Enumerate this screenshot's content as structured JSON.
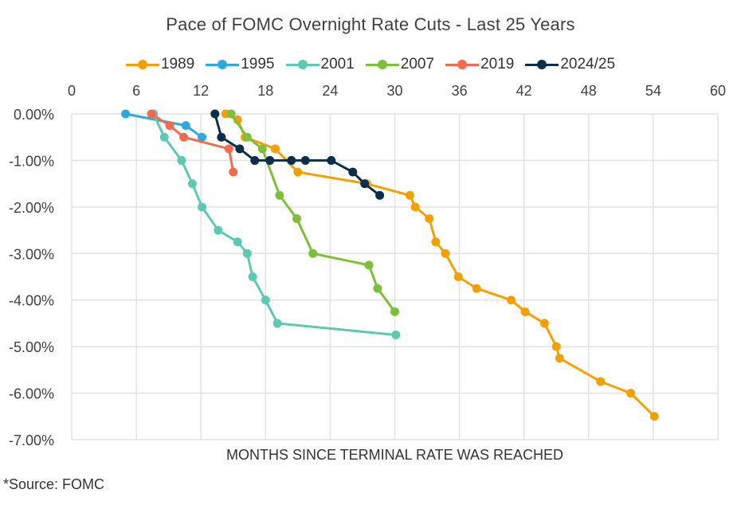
{
  "chart_data": {
    "type": "line",
    "title": "Pace of FOMC Overnight Rate Cuts - Last 25 Years",
    "xlabel": "MONTHS SINCE TERMINAL RATE WAS REACHED",
    "ylabel": "",
    "xlim": [
      0,
      60
    ],
    "ylim": [
      -7,
      0
    ],
    "x_ticks": [
      0,
      6,
      12,
      18,
      24,
      30,
      36,
      42,
      48,
      54,
      60
    ],
    "x_tick_labels": [
      "0",
      "6",
      "12",
      "18",
      "24",
      "30",
      "36",
      "42",
      "48",
      "54",
      "60"
    ],
    "x_axis_position": "top",
    "y_ticks": [
      0,
      -1,
      -2,
      -3,
      -4,
      -5,
      -6,
      -7
    ],
    "y_tick_labels": [
      "0.00%",
      "-1.00%",
      "-2.00%",
      "-3.00%",
      "-4.00%",
      "-5.00%",
      "-6.00%",
      "-7.00%"
    ],
    "grid": true,
    "legend_position": "top",
    "series": [
      {
        "name": "1989",
        "color": "#F2A104",
        "x": [
          14.3,
          15.4,
          16.1,
          18.9,
          21.0,
          27.4,
          31.4,
          31.9,
          33.2,
          33.8,
          34.7,
          35.9,
          37.6,
          40.8,
          42.1,
          43.9,
          45.0,
          45.3,
          49.1,
          51.9,
          54.1
        ],
        "y": [
          0,
          -0.125,
          -0.5,
          -0.75,
          -1.25,
          -1.5,
          -1.75,
          -2.0,
          -2.25,
          -2.75,
          -3.0,
          -3.5,
          -3.75,
          -4.0,
          -4.25,
          -4.5,
          -5.0,
          -5.25,
          -5.75,
          -6.0,
          -6.5
        ]
      },
      {
        "name": "1995",
        "color": "#2EA8DF",
        "x": [
          5.0,
          10.6,
          12.1
        ],
        "y": [
          0,
          -0.25,
          -0.5
        ]
      },
      {
        "name": "2001",
        "color": "#5DC9B0",
        "x": [
          7.6,
          8.6,
          10.2,
          11.2,
          12.1,
          13.6,
          15.4,
          16.3,
          16.8,
          18.0,
          19.1,
          30.1
        ],
        "y": [
          0,
          -0.5,
          -1.0,
          -1.5,
          -2.0,
          -2.5,
          -2.75,
          -3.0,
          -3.5,
          -4.0,
          -4.5,
          -4.75
        ]
      },
      {
        "name": "2007",
        "color": "#7CBF3A",
        "x": [
          14.8,
          16.3,
          17.7,
          19.3,
          20.9,
          22.4,
          27.6,
          28.4,
          30.0
        ],
        "y": [
          0,
          -0.5,
          -0.75,
          -1.75,
          -2.25,
          -3.0,
          -3.25,
          -3.75,
          -4.25
        ]
      },
      {
        "name": "2019",
        "color": "#F26B4F",
        "x": [
          7.4,
          9.1,
          10.4,
          14.6,
          15.0
        ],
        "y": [
          0,
          -0.25,
          -0.5,
          -0.75,
          -1.25
        ]
      },
      {
        "name": "2024/25",
        "color": "#0B2F4A",
        "x": [
          13.3,
          13.9,
          15.6,
          17.0,
          18.4,
          20.4,
          21.7,
          24.1,
          26.1,
          27.2,
          28.6
        ],
        "y": [
          0,
          -0.5,
          -0.75,
          -1.0,
          -1.0,
          -1.0,
          -1.0,
          -1.0,
          -1.25,
          -1.5,
          -1.75
        ]
      }
    ]
  },
  "footer": {
    "source": "*Source: FOMC"
  }
}
